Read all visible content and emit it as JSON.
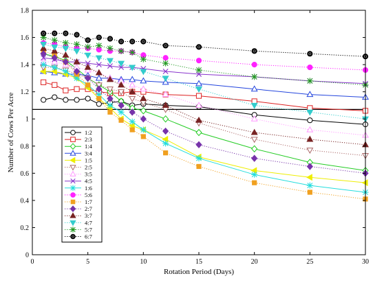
{
  "chart_data": {
    "type": "line",
    "title": "",
    "xlabel": "Rotation Period (Days)",
    "ylabel": "Number of Cows Per Acre",
    "xlim": [
      0,
      30
    ],
    "ylim": [
      0,
      1.8
    ],
    "xticks": [
      0,
      5,
      10,
      15,
      20,
      25,
      30
    ],
    "yticks": [
      0,
      0.2,
      0.4,
      0.6,
      0.8,
      1,
      1.2,
      1.4,
      1.6,
      1.8
    ],
    "reference_line_y": 1.07,
    "grid": false,
    "legend_position": "lower-left",
    "x": [
      1,
      2,
      3,
      4,
      5,
      6,
      7,
      8,
      9,
      10,
      12,
      15,
      20,
      25,
      30
    ],
    "series": [
      {
        "name": "1:2",
        "color": "#000000",
        "marker": "open-circle",
        "line": "solid",
        "values": [
          1.14,
          1.16,
          1.14,
          1.14,
          1.15,
          1.11,
          1.12,
          1.13,
          1.1,
          1.11,
          1.1,
          1.09,
          1.03,
          0.99,
          0.96
        ]
      },
      {
        "name": "2:3",
        "color": "#dd2020",
        "marker": "open-square",
        "line": "solid",
        "values": [
          1.27,
          1.25,
          1.21,
          1.22,
          1.22,
          1.2,
          1.19,
          1.19,
          1.2,
          1.2,
          1.18,
          1.17,
          1.13,
          1.08,
          1.06
        ]
      },
      {
        "name": "1:4",
        "color": "#22cc22",
        "marker": "open-diamond",
        "line": "solid",
        "values": [
          1.48,
          1.46,
          1.43,
          1.37,
          1.3,
          1.25,
          1.2,
          1.13,
          1.08,
          1.06,
          1.0,
          0.9,
          0.78,
          0.68,
          0.62
        ]
      },
      {
        "name": "3:4",
        "color": "#2244dd",
        "marker": "open-triangle-up",
        "line": "solid",
        "values": [
          1.35,
          1.34,
          1.33,
          1.33,
          1.32,
          1.3,
          1.3,
          1.29,
          1.29,
          1.28,
          1.27,
          1.26,
          1.22,
          1.18,
          1.16
        ]
      },
      {
        "name": "1:5",
        "color": "#eeee00",
        "marker": "triangle-left",
        "line": "solid",
        "values": [
          1.35,
          1.35,
          1.33,
          1.3,
          1.23,
          1.15,
          1.08,
          1.0,
          0.95,
          0.92,
          0.85,
          0.72,
          0.62,
          0.57,
          0.53
        ]
      },
      {
        "name": "2:5",
        "color": "#aa6666",
        "marker": "open-triangle-down",
        "line": "dotted",
        "values": [
          1.38,
          1.38,
          1.36,
          1.33,
          1.3,
          1.25,
          1.22,
          1.2,
          1.15,
          1.12,
          1.07,
          0.97,
          0.85,
          0.77,
          0.73
        ]
      },
      {
        "name": "3:5",
        "color": "#ff99ff",
        "marker": "open-triangle-up",
        "line": "dotted",
        "values": [
          1.42,
          1.42,
          1.4,
          1.38,
          1.36,
          1.34,
          1.3,
          1.28,
          1.25,
          1.22,
          1.18,
          1.1,
          1.0,
          0.92,
          0.88
        ]
      },
      {
        "name": "4:5",
        "color": "#8833cc",
        "marker": "x",
        "line": "solid",
        "values": [
          1.45,
          1.44,
          1.42,
          1.42,
          1.41,
          1.4,
          1.39,
          1.38,
          1.38,
          1.37,
          1.35,
          1.33,
          1.31,
          1.28,
          1.26
        ]
      },
      {
        "name": "1:6",
        "color": "#22dddd",
        "marker": "asterisk",
        "line": "solid",
        "values": [
          1.4,
          1.38,
          1.35,
          1.3,
          1.25,
          1.18,
          1.1,
          1.05,
          0.98,
          0.92,
          0.82,
          0.71,
          0.59,
          0.51,
          0.46
        ]
      },
      {
        "name": "5:6",
        "color": "#ff22ff",
        "marker": "filled-circle",
        "line": "dotted",
        "values": [
          1.56,
          1.55,
          1.53,
          1.52,
          1.52,
          1.51,
          1.5,
          1.5,
          1.49,
          1.47,
          1.45,
          1.43,
          1.4,
          1.38,
          1.36
        ]
      },
      {
        "name": "1:7",
        "color": "#f0a020",
        "marker": "filled-square",
        "line": "dotted",
        "values": [
          1.5,
          1.47,
          1.42,
          1.33,
          1.25,
          1.15,
          1.05,
          0.99,
          0.92,
          0.87,
          0.75,
          0.65,
          0.53,
          0.46,
          0.41
        ]
      },
      {
        "name": "2:7",
        "color": "#7733aa",
        "marker": "filled-diamond",
        "line": "dotted",
        "values": [
          1.48,
          1.45,
          1.42,
          1.35,
          1.3,
          1.22,
          1.15,
          1.1,
          1.05,
          1.0,
          0.91,
          0.81,
          0.71,
          0.65,
          0.6
        ]
      },
      {
        "name": "3:7",
        "color": "#772222",
        "marker": "filled-triangle-up",
        "line": "dotted",
        "values": [
          1.52,
          1.5,
          1.47,
          1.42,
          1.38,
          1.34,
          1.29,
          1.25,
          1.2,
          1.15,
          1.1,
          0.99,
          0.9,
          0.85,
          0.81
        ]
      },
      {
        "name": "4:7",
        "color": "#33cccc",
        "marker": "filled-triangle-down",
        "line": "dotted",
        "values": [
          1.55,
          1.53,
          1.52,
          1.5,
          1.47,
          1.45,
          1.43,
          1.41,
          1.38,
          1.35,
          1.3,
          1.22,
          1.1,
          1.05,
          1.0
        ]
      },
      {
        "name": "5:7",
        "color": "#229922",
        "marker": "asterisk",
        "line": "dotted",
        "values": [
          1.6,
          1.58,
          1.56,
          1.55,
          1.53,
          1.54,
          1.52,
          1.5,
          1.49,
          1.44,
          1.41,
          1.36,
          1.31,
          1.28,
          1.25
        ]
      },
      {
        "name": "6:7",
        "color": "#000000",
        "marker": "filled-circle-ring",
        "line": "dotted",
        "values": [
          1.63,
          1.63,
          1.63,
          1.62,
          1.58,
          1.6,
          1.59,
          1.57,
          1.57,
          1.57,
          1.54,
          1.53,
          1.5,
          1.48,
          1.46
        ]
      }
    ]
  }
}
